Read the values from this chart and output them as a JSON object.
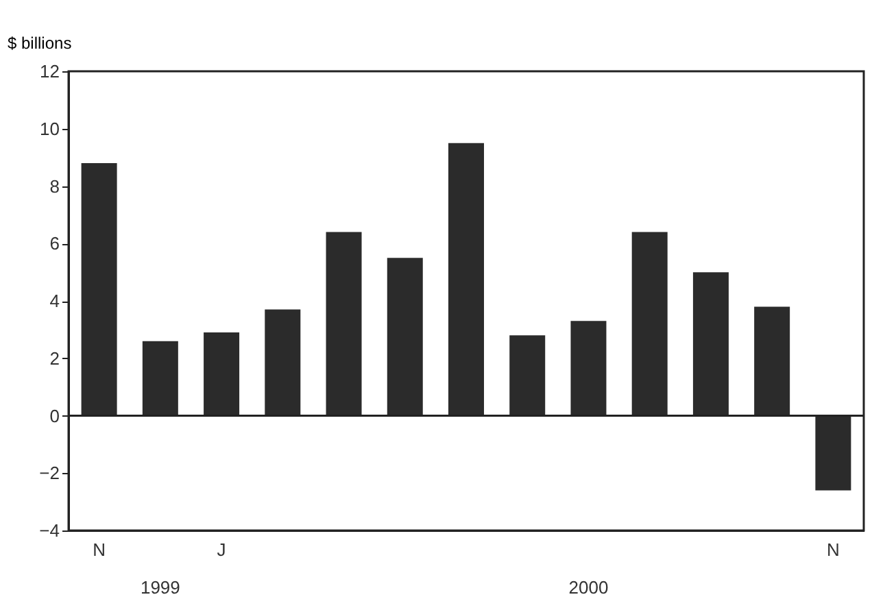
{
  "chart_data": {
    "type": "bar",
    "ylabel": "$ billions",
    "categories": [
      "N",
      null,
      "J",
      null,
      null,
      null,
      null,
      null,
      null,
      null,
      null,
      null,
      "N"
    ],
    "values": [
      8.8,
      2.6,
      2.9,
      3.7,
      6.4,
      5.5,
      9.5,
      2.8,
      3.3,
      6.4,
      5.0,
      3.8,
      -2.6
    ],
    "color": "#2b2b2b",
    "ylim": [
      -4,
      12
    ],
    "yticks": [
      -4,
      -2,
      0,
      2,
      4,
      6,
      8,
      10,
      12
    ],
    "grid": false,
    "ref_lines": [
      {
        "axis": "y",
        "value": 0
      }
    ],
    "annotations": [
      "1999",
      "2000"
    ]
  }
}
